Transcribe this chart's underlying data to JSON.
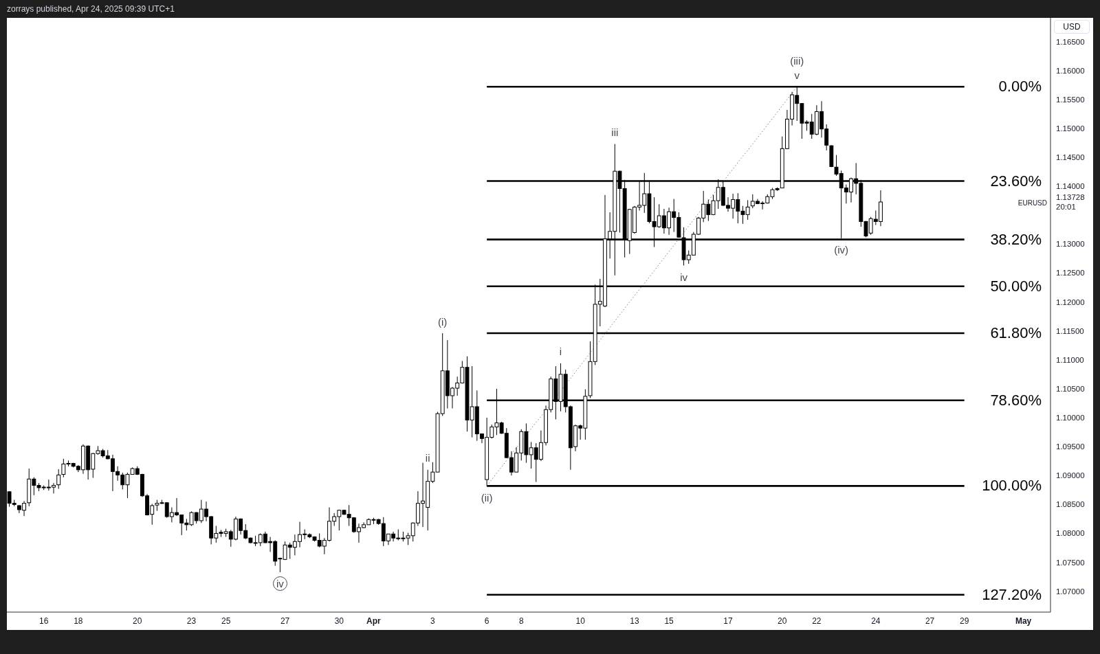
{
  "chart_data": {
    "type": "candlestick",
    "ylabel": "USD",
    "categories": [
      null,
      null,
      null,
      null,
      null,
      null,
      null,
      "16",
      null,
      null,
      null,
      null,
      null,
      null,
      "18",
      null,
      null,
      null,
      null,
      null,
      null,
      null,
      null,
      null,
      null,
      null,
      "20",
      null,
      null,
      null,
      null,
      null,
      null,
      null,
      null,
      null,
      null,
      "23",
      null,
      null,
      null,
      null,
      null,
      null,
      "25",
      null,
      null,
      null,
      null,
      null,
      null,
      null,
      null,
      null,
      null,
      null,
      "27",
      null,
      null,
      null,
      null,
      null,
      null,
      null,
      null,
      null,
      null,
      "30",
      null,
      null,
      null,
      null,
      null,
      null,
      "Apr",
      null,
      null,
      null,
      null,
      null,
      null,
      null,
      null,
      null,
      null,
      null,
      "3",
      null,
      null,
      null,
      null,
      null,
      null,
      null,
      null,
      null,
      null,
      "6",
      null,
      null,
      null,
      null,
      null,
      null,
      "8",
      null,
      null,
      null,
      null,
      null,
      null,
      null,
      null,
      null,
      null,
      null,
      "10",
      null,
      null,
      null,
      null,
      null,
      null,
      null,
      null,
      null,
      null,
      "13",
      null,
      null,
      null,
      null,
      null,
      null,
      "15",
      null,
      null,
      null,
      null,
      null,
      null,
      null,
      null,
      null,
      null,
      null,
      "17",
      null,
      null,
      null,
      null,
      null,
      null,
      null,
      null,
      null,
      null,
      "20",
      null,
      null,
      null,
      null,
      null,
      null,
      "22",
      null,
      null,
      null,
      null,
      null,
      null,
      null,
      null,
      null,
      null,
      null,
      "24",
      null,
      null,
      null,
      null,
      null,
      null,
      null,
      null,
      null,
      null,
      "27",
      null,
      null,
      null,
      null,
      null,
      null,
      "29",
      null,
      null,
      null,
      null,
      null,
      null,
      null,
      null,
      null,
      null,
      null,
      "May",
      null,
      null,
      null,
      null,
      null
    ],
    "ylim": [
      1.0664,
      1.1691
    ],
    "yticks": [
      {
        "value": 1.07,
        "label": "1.07000"
      },
      {
        "value": 1.075,
        "label": "1.07500"
      },
      {
        "value": 1.08,
        "label": "1.08000"
      },
      {
        "value": 1.085,
        "label": "1.08500"
      },
      {
        "value": 1.09,
        "label": "1.09000"
      },
      {
        "value": 1.095,
        "label": "1.09500"
      },
      {
        "value": 1.1,
        "label": "1.10000"
      },
      {
        "value": 1.105,
        "label": "1.10500"
      },
      {
        "value": 1.11,
        "label": "1.11000"
      },
      {
        "value": 1.115,
        "label": "1.11500"
      },
      {
        "value": 1.12,
        "label": "1.12000"
      },
      {
        "value": 1.125,
        "label": "1.12500"
      },
      {
        "value": 1.13,
        "label": "1.13000"
      },
      {
        "value": 1.13728,
        "label": "1.13728\n20:01"
      },
      {
        "value": 1.14,
        "label": "1.14000"
      },
      {
        "value": 1.145,
        "label": "1.14500"
      },
      {
        "value": 1.15,
        "label": "1.15000"
      },
      {
        "value": 1.155,
        "label": "1.15500"
      },
      {
        "value": 1.16,
        "label": "1.16000"
      },
      {
        "value": 1.165,
        "label": "1.16500"
      }
    ],
    "series": [
      {
        "name": "EURUSD",
        "color": "#000000",
        "ohlc": [
          [
            1.0872,
            1.0873,
            1.0846,
            1.0852
          ],
          [
            1.0852,
            1.0858,
            1.0847,
            1.085
          ],
          [
            1.0848,
            1.0849,
            1.0835,
            1.0841
          ],
          [
            1.084,
            1.0856,
            1.083,
            1.0852
          ],
          [
            1.0853,
            1.0912,
            1.0847,
            1.0894
          ],
          [
            1.0894,
            1.0897,
            1.0866,
            1.0883
          ],
          [
            1.0883,
            1.0887,
            1.0873,
            1.0879
          ],
          [
            1.0879,
            1.0883,
            1.0875,
            1.088
          ],
          [
            1.088,
            1.0893,
            1.0874,
            1.088
          ],
          [
            1.088,
            1.0887,
            1.0869,
            1.0883
          ],
          [
            1.0884,
            1.0911,
            1.0877,
            1.0901
          ],
          [
            1.0902,
            1.0929,
            1.0897,
            1.092
          ],
          [
            1.092,
            1.0926,
            1.0916,
            1.0921
          ],
          [
            1.0921,
            1.0922,
            1.0914,
            1.0916
          ],
          [
            1.0916,
            1.0918,
            1.0906,
            1.091
          ],
          [
            1.091,
            1.0954,
            1.0903,
            1.0951
          ],
          [
            1.0951,
            1.0952,
            1.0893,
            1.091
          ],
          [
            1.0911,
            1.0939,
            1.0896,
            1.0938
          ],
          [
            1.0938,
            1.0951,
            1.0936,
            1.0943
          ],
          [
            1.0943,
            1.0946,
            1.0931,
            1.0934
          ],
          [
            1.0934,
            1.0944,
            1.0928,
            1.0929
          ],
          [
            1.0929,
            1.0936,
            1.0873,
            1.0907
          ],
          [
            1.0907,
            1.0916,
            1.0891,
            1.0901
          ],
          [
            1.0901,
            1.0905,
            1.0876,
            1.0884
          ],
          [
            1.0884,
            1.0905,
            1.0861,
            1.0902
          ],
          [
            1.0902,
            1.0914,
            1.0902,
            1.0912
          ],
          [
            1.0912,
            1.0916,
            1.0901,
            1.0902
          ],
          [
            1.0902,
            1.0903,
            1.0863,
            1.0865
          ],
          [
            1.0865,
            1.0868,
            1.0831,
            1.0832
          ],
          [
            1.0833,
            1.0851,
            1.0815,
            1.0848
          ],
          [
            1.0849,
            1.0858,
            1.0839,
            1.0852
          ],
          [
            1.0852,
            1.0858,
            1.0851,
            1.0853
          ],
          [
            1.0853,
            1.0854,
            1.0827,
            1.0829
          ],
          [
            1.0829,
            1.0845,
            1.0819,
            1.0836
          ],
          [
            1.0836,
            1.0861,
            1.083,
            1.0832
          ],
          [
            1.0832,
            1.0832,
            1.0797,
            1.0818
          ],
          [
            1.0818,
            1.0825,
            1.0805,
            1.0815
          ],
          [
            1.0815,
            1.0838,
            1.0813,
            1.0836
          ],
          [
            1.0836,
            1.0837,
            1.0817,
            1.0822
          ],
          [
            1.0822,
            1.0858,
            1.0818,
            1.0842
          ],
          [
            1.0842,
            1.0855,
            1.0821,
            1.0829
          ],
          [
            1.0829,
            1.083,
            1.0781,
            1.0792
          ],
          [
            1.0792,
            1.0813,
            1.0784,
            1.08
          ],
          [
            1.08,
            1.0806,
            1.0794,
            1.0802
          ],
          [
            1.08,
            1.0808,
            1.0794,
            1.0803
          ],
          [
            1.0803,
            1.0806,
            1.0777,
            1.079
          ],
          [
            1.079,
            1.0829,
            1.0788,
            1.0825
          ],
          [
            1.0825,
            1.0826,
            1.0798,
            1.0805
          ],
          [
            1.0805,
            1.0816,
            1.079,
            1.0792
          ],
          [
            1.0792,
            1.0793,
            1.0783,
            1.0784
          ],
          [
            1.0784,
            1.0796,
            1.0778,
            1.0784
          ],
          [
            1.0784,
            1.08,
            1.0778,
            1.0798
          ],
          [
            1.0799,
            1.0803,
            1.0783,
            1.0784
          ],
          [
            1.0784,
            1.0794,
            1.0768,
            1.0786
          ],
          [
            1.0786,
            1.0788,
            1.0744,
            1.0752
          ],
          [
            1.0757,
            1.0758,
            1.0733,
            1.0756
          ],
          [
            1.0755,
            1.0786,
            1.0754,
            1.078
          ],
          [
            1.078,
            1.0784,
            1.0756,
            1.0776
          ],
          [
            1.0776,
            1.0798,
            1.0762,
            1.0786
          ],
          [
            1.0786,
            1.082,
            1.0776,
            1.0798
          ],
          [
            1.0798,
            1.0807,
            1.079,
            1.0799
          ],
          [
            1.0798,
            1.08,
            1.0792,
            1.0794
          ],
          [
            1.0794,
            1.0795,
            1.0786,
            1.0788
          ],
          [
            1.0788,
            1.08,
            1.0776,
            1.0778
          ],
          [
            1.0778,
            1.0792,
            1.0764,
            1.0788
          ],
          [
            1.0788,
            1.0845,
            1.0786,
            1.0821
          ],
          [
            1.0821,
            1.0835,
            1.0813,
            1.0829
          ],
          [
            1.0829,
            1.0841,
            1.0805,
            1.084
          ],
          [
            1.084,
            1.0841,
            1.0832,
            1.0833
          ],
          [
            1.0833,
            1.0849,
            1.0813,
            1.0827
          ],
          [
            1.0827,
            1.0828,
            1.0801,
            1.0803
          ],
          [
            1.0803,
            1.0817,
            1.0784,
            1.081
          ],
          [
            1.081,
            1.0819,
            1.0809,
            1.0815
          ],
          [
            1.0815,
            1.0826,
            1.0815,
            1.0824
          ],
          [
            1.0824,
            1.0827,
            1.0816,
            1.0824
          ],
          [
            1.0824,
            1.0825,
            1.0815,
            1.0817
          ],
          [
            1.0817,
            1.0828,
            1.0778,
            1.0787
          ],
          [
            1.0787,
            1.0799,
            1.078,
            1.0799
          ],
          [
            1.0799,
            1.0803,
            1.0786,
            1.0792
          ],
          [
            1.0792,
            1.0807,
            1.0788,
            1.0791
          ],
          [
            1.0791,
            1.0803,
            1.0786,
            1.0792
          ],
          [
            1.0792,
            1.0801,
            1.078,
            1.0796
          ],
          [
            1.0796,
            1.0819,
            1.0786,
            1.0818
          ],
          [
            1.0818,
            1.0873,
            1.0813,
            1.0852
          ],
          [
            1.0852,
            1.0922,
            1.0811,
            1.0856
          ],
          [
            1.0845,
            1.091,
            1.0805,
            1.089
          ],
          [
            1.089,
            1.0923,
            1.0887,
            1.0906
          ],
          [
            1.0906,
            1.101,
            1.0906,
            1.1007
          ],
          [
            1.1007,
            1.1146,
            1.1003,
            1.1081
          ],
          [
            1.1081,
            1.1134,
            1.1016,
            1.1038
          ],
          [
            1.1038,
            1.1053,
            1.1016,
            1.1051
          ],
          [
            1.1051,
            1.1071,
            1.1038,
            1.106
          ],
          [
            1.106,
            1.1098,
            1.1059,
            1.1087
          ],
          [
            1.1087,
            1.1106,
            1.0976,
            1.0996
          ],
          [
            1.0996,
            1.1089,
            1.0966,
            1.1019
          ],
          [
            1.1019,
            1.1047,
            1.096,
            1.0972
          ],
          [
            1.0972,
            1.0972,
            1.0956,
            1.0964
          ],
          [
            1.0893,
            1.1,
            1.0882,
            1.0966
          ],
          [
            1.0966,
            1.0988,
            1.0964,
            1.0984
          ],
          [
            1.0984,
            1.105,
            1.097,
            1.0991
          ],
          [
            1.0991,
            1.0993,
            1.0972,
            1.0973
          ],
          [
            1.0973,
            1.0982,
            1.093,
            1.0931
          ],
          [
            1.0931,
            1.0942,
            1.09,
            1.0906
          ],
          [
            1.0906,
            1.0949,
            1.0906,
            1.0939
          ],
          [
            1.0939,
            1.098,
            1.0926,
            1.0976
          ],
          [
            1.0976,
            1.099,
            1.0922,
            1.0936
          ],
          [
            1.0936,
            1.0958,
            1.0912,
            1.0948
          ],
          [
            1.0948,
            1.0956,
            1.0889,
            1.0928
          ],
          [
            1.0928,
            1.0978,
            1.0925,
            1.0957
          ],
          [
            1.0957,
            1.1021,
            1.0952,
            1.1014
          ],
          [
            1.1014,
            1.1071,
            1.1009,
            1.1067
          ],
          [
            1.1067,
            1.1089,
            1.0997,
            1.1028
          ],
          [
            1.1028,
            1.1094,
            1.1011,
            1.1075
          ],
          [
            1.1075,
            1.1083,
            1.1009,
            1.1019
          ],
          [
            1.1019,
            1.1021,
            1.091,
            1.0948
          ],
          [
            1.095,
            1.0988,
            1.0942,
            1.0986
          ],
          [
            1.0986,
            1.0988,
            1.0962,
            1.0982
          ],
          [
            1.0982,
            1.1049,
            1.0962,
            1.1037
          ],
          [
            1.1038,
            1.1132,
            1.1034,
            1.1097
          ],
          [
            1.1097,
            1.123,
            1.1091,
            1.1196
          ],
          [
            1.1196,
            1.124,
            1.1158,
            1.1201
          ],
          [
            1.1193,
            1.1385,
            1.1191,
            1.1309
          ],
          [
            1.1309,
            1.1355,
            1.1275,
            1.1322
          ],
          [
            1.1322,
            1.1473,
            1.1246,
            1.1426
          ],
          [
            1.1426,
            1.1427,
            1.132,
            1.1396
          ],
          [
            1.1396,
            1.1411,
            1.1277,
            1.1307
          ],
          [
            1.1306,
            1.1361,
            1.1283,
            1.136
          ],
          [
            1.132,
            1.1366,
            1.1318,
            1.1364
          ],
          [
            1.1364,
            1.1408,
            1.1358,
            1.1367
          ],
          [
            1.1367,
            1.1423,
            1.1354,
            1.1387
          ],
          [
            1.1387,
            1.1408,
            1.1336,
            1.1339
          ],
          [
            1.1339,
            1.1381,
            1.1295,
            1.133
          ],
          [
            1.133,
            1.1369,
            1.1328,
            1.1349
          ],
          [
            1.1349,
            1.1361,
            1.1318,
            1.1328
          ],
          [
            1.1328,
            1.1363,
            1.1316,
            1.1356
          ],
          [
            1.1356,
            1.1378,
            1.1321,
            1.1346
          ],
          [
            1.1346,
            1.1355,
            1.1311,
            1.1312
          ],
          [
            1.1311,
            1.1329,
            1.1263,
            1.1273
          ],
          [
            1.1273,
            1.1289,
            1.1266,
            1.1281
          ],
          [
            1.1281,
            1.1321,
            1.1281,
            1.1317
          ],
          [
            1.1317,
            1.1347,
            1.1316,
            1.1345
          ],
          [
            1.1345,
            1.1392,
            1.1338,
            1.1369
          ],
          [
            1.1369,
            1.1377,
            1.134,
            1.1351
          ],
          [
            1.1351,
            1.1385,
            1.135,
            1.1375
          ],
          [
            1.1375,
            1.1412,
            1.1361,
            1.1398
          ],
          [
            1.1398,
            1.141,
            1.1366,
            1.1367
          ],
          [
            1.1367,
            1.1381,
            1.1356,
            1.1362
          ],
          [
            1.1362,
            1.1387,
            1.1344,
            1.1377
          ],
          [
            1.1377,
            1.1388,
            1.1336,
            1.1357
          ],
          [
            1.1357,
            1.1366,
            1.1335,
            1.1351
          ],
          [
            1.1351,
            1.1376,
            1.1342,
            1.1364
          ],
          [
            1.1366,
            1.1386,
            1.1362,
            1.1374
          ],
          [
            1.1374,
            1.1378,
            1.1369,
            1.137
          ],
          [
            1.137,
            1.1374,
            1.136,
            1.1371
          ],
          [
            1.1371,
            1.1386,
            1.137,
            1.1382
          ],
          [
            1.1382,
            1.1397,
            1.1378,
            1.1394
          ],
          [
            1.1394,
            1.1398,
            1.1392,
            1.1396
          ],
          [
            1.1397,
            1.1486,
            1.1397,
            1.1465
          ],
          [
            1.1465,
            1.1532,
            1.1464,
            1.1516
          ],
          [
            1.1516,
            1.1563,
            1.1505,
            1.1558
          ],
          [
            1.1557,
            1.1572,
            1.1513,
            1.1543
          ],
          [
            1.1543,
            1.1543,
            1.1482,
            1.1509
          ],
          [
            1.1509,
            1.1514,
            1.1496,
            1.1511
          ],
          [
            1.1511,
            1.1525,
            1.1482,
            1.149
          ],
          [
            1.149,
            1.154,
            1.1488,
            1.1529
          ],
          [
            1.1529,
            1.1547,
            1.1484,
            1.1499
          ],
          [
            1.1499,
            1.1507,
            1.1462,
            1.1471
          ],
          [
            1.147,
            1.1471,
            1.1433,
            1.1434
          ],
          [
            1.1433,
            1.1454,
            1.1418,
            1.1421
          ],
          [
            1.1422,
            1.1427,
            1.131,
            1.1397
          ],
          [
            1.1397,
            1.1403,
            1.137,
            1.139
          ],
          [
            1.139,
            1.1415,
            1.1372,
            1.1413
          ],
          [
            1.1413,
            1.144,
            1.1386,
            1.1405
          ],
          [
            1.1405,
            1.1411,
            1.133,
            1.1339
          ],
          [
            1.1339,
            1.134,
            1.1312,
            1.1314
          ],
          [
            1.1319,
            1.1347,
            1.1316,
            1.1344
          ],
          [
            1.1343,
            1.1358,
            1.1333,
            1.1339
          ],
          [
            1.1339,
            1.1393,
            1.1331,
            1.13728
          ],
          null,
          null,
          null,
          null,
          null,
          null,
          null,
          null,
          null,
          null,
          null,
          null,
          null,
          null,
          null,
          null,
          null,
          null,
          null,
          null,
          null,
          null,
          null,
          null,
          null,
          null,
          null,
          null,
          null,
          null,
          null,
          null,
          null,
          null
        ]
      },
      {
        "type": "line",
        "name": "0.00%",
        "color": "#000000",
        "x": [
          "6",
          "29"
        ],
        "values": [
          1.1572,
          1.1572
        ]
      },
      {
        "type": "line",
        "name": "23.60%",
        "color": "#000000",
        "x": [
          "6",
          "29"
        ],
        "values": [
          1.1409,
          1.1409
        ]
      },
      {
        "type": "line",
        "name": "38.20%",
        "color": "#000000",
        "x": [
          "6",
          "29"
        ],
        "values": [
          1.1308,
          1.1308
        ]
      },
      {
        "type": "line",
        "name": "50.00%",
        "color": "#000000",
        "x": [
          "6",
          "29"
        ],
        "values": [
          1.1227,
          1.1227
        ]
      },
      {
        "type": "line",
        "name": "61.80%",
        "color": "#000000",
        "x": [
          "6",
          "29"
        ],
        "values": [
          1.1146,
          1.1146
        ]
      },
      {
        "type": "line",
        "name": "78.60%",
        "color": "#000000",
        "x": [
          "6",
          "29"
        ],
        "values": [
          1.103,
          1.103
        ]
      },
      {
        "type": "line",
        "name": "100.00%",
        "color": "#000000",
        "x": [
          "6",
          "29"
        ],
        "values": [
          1.0882,
          1.0882
        ]
      },
      {
        "type": "line",
        "name": "127.20%",
        "color": "#000000",
        "x": [
          "6",
          "29"
        ],
        "values": [
          1.0694,
          1.0694
        ]
      },
      {
        "type": "line",
        "color": "#787b86",
        "line_style": "dotted",
        "values": [
          null,
          null,
          null,
          null,
          null,
          null,
          null,
          null,
          null,
          null,
          null,
          null,
          null,
          null,
          null,
          null,
          null,
          null,
          null,
          null,
          null,
          null,
          null,
          null,
          null,
          null,
          null,
          null,
          null,
          null,
          null,
          null,
          null,
          null,
          null,
          null,
          null,
          null,
          null,
          null,
          null,
          null,
          null,
          null,
          null,
          null,
          null,
          null,
          null,
          null,
          null,
          null,
          null,
          null,
          null,
          null,
          null,
          null,
          null,
          null,
          null,
          null,
          null,
          null,
          null,
          null,
          null,
          null,
          null,
          null,
          null,
          null,
          null,
          null,
          null,
          null,
          null,
          null,
          null,
          null,
          null,
          null,
          null,
          null,
          null,
          null,
          null,
          null,
          null,
          null,
          null,
          null,
          null,
          null,
          null,
          null,
          null,
          1.0882,
          1.0893,
          1.0904,
          1.0915,
          1.0926,
          1.0937,
          1.0948,
          1.0959,
          1.097,
          1.0981,
          1.0992,
          1.1002,
          1.1013,
          1.1024,
          1.1035,
          1.1046,
          1.1057,
          1.1068,
          1.1079,
          1.109,
          1.1101,
          1.1112,
          1.1123,
          1.1134,
          1.1145,
          1.1156,
          1.1167,
          1.1178,
          1.1189,
          1.12,
          1.1211,
          1.1222,
          1.1232,
          1.1243,
          1.1254,
          1.1265,
          1.1276,
          1.1287,
          1.1298,
          1.1309,
          1.132,
          1.1331,
          1.1342,
          1.1353,
          1.1364,
          1.1375,
          1.1386,
          1.1397,
          1.1408,
          1.1419,
          1.143,
          1.1441,
          1.1452,
          1.1462,
          1.1473,
          1.1484,
          1.1495,
          1.1506,
          1.1517,
          1.1528,
          1.1539,
          1.155,
          1.1561,
          1.1572,
          null,
          null,
          null,
          null,
          null,
          null,
          null,
          null,
          null,
          null,
          null,
          null,
          null,
          null,
          null,
          null,
          null,
          null,
          null,
          null,
          null,
          null,
          null,
          null,
          null,
          null,
          null,
          null,
          null,
          null,
          null,
          null,
          null,
          null,
          null,
          null,
          null,
          null,
          null,
          null,
          null,
          null,
          null,
          null,
          null,
          null,
          null,
          null,
          null,
          null,
          null
        ]
      }
    ],
    "annotations": [
      "zorrays published, Apr 24, 2025 09:39 UTC+1",
      {
        "text": "v",
        "y": 1.1572
      },
      {
        "text": "(iii)",
        "y": 1.1572
      },
      {
        "text": "iii",
        "y": 1.1473
      },
      {
        "text": "(i)",
        "y": 1.1146
      },
      {
        "text": "i",
        "y": 1.1094
      },
      {
        "text": "(ii)",
        "x": "6",
        "y": 1.0882
      },
      {
        "text": "ii",
        "y": 1.091
      },
      {
        "text": "iv",
        "y": 1.1263
      },
      {
        "text": "(iv)",
        "y": 1.131
      },
      {
        "text": "iv",
        "y": 1.0733
      }
    ]
  }
}
